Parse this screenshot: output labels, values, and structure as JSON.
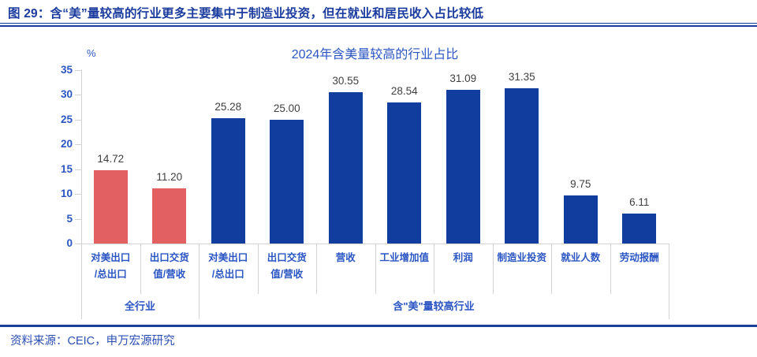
{
  "header": {
    "title": "图 29：含“美”量较高的行业更多主要集中于制造业投资，但在就业和居民收入占比较低"
  },
  "chart_data": {
    "type": "bar",
    "title": "2024年含美量较高的行业占比",
    "xlabel": "",
    "ylabel": "%",
    "unit_label": "%",
    "ylim": [
      0,
      35
    ],
    "yticks": [
      0,
      5,
      10,
      15,
      20,
      25,
      30,
      35
    ],
    "grid": false,
    "legend_position": "none",
    "categories": [
      "对美出口\n/总出口",
      "出口交货\n值/营收",
      "对美出口\n/总出口",
      "出口交货\n值/营收",
      "营收",
      "工业增加值",
      "利润",
      "制造业投资",
      "就业人数",
      "劳动报酬"
    ],
    "values": [
      14.72,
      11.2,
      25.28,
      25.0,
      30.55,
      28.54,
      31.09,
      31.35,
      9.75,
      6.11
    ],
    "value_labels": [
      "14.72",
      "11.20",
      "25.28",
      "25.00",
      "30.55",
      "28.54",
      "31.09",
      "31.35",
      "9.75",
      "6.11"
    ],
    "bar_colors": [
      "#e25f62",
      "#e25f62",
      "#103d9e",
      "#103d9e",
      "#103d9e",
      "#103d9e",
      "#103d9e",
      "#103d9e",
      "#103d9e",
      "#103d9e"
    ],
    "groups": [
      {
        "label": "全行业",
        "start": 0,
        "end": 1
      },
      {
        "label": "含\"美\"量较高行业",
        "start": 2,
        "end": 9
      }
    ]
  },
  "source": {
    "text": "资料来源：CEIC，申万宏源研究"
  },
  "colors": {
    "bar_blue": "#103d9e",
    "bar_red": "#e25f62",
    "axis_text_blue": "#2a55c3",
    "header_blue": "#1b3c9e",
    "axis_line_gray": "#d2d2d2",
    "data_label_gray": "#3f3f3f"
  }
}
